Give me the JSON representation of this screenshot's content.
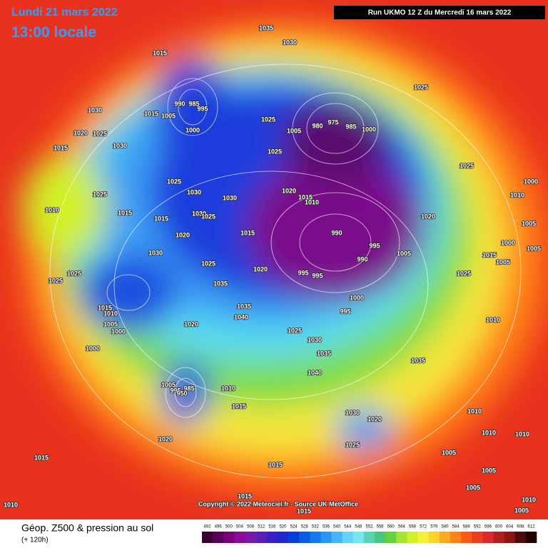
{
  "header": {
    "date": "Lundi 21 mars 2022",
    "time": "13:00 locale",
    "run": "Run UKMO 12 Z du Mercredi 16 mars 2022"
  },
  "map": {
    "isobar_labels": [
      1035,
      1030,
      1015,
      1030,
      1015,
      1005,
      990,
      985,
      995,
      1000,
      1020,
      1025,
      1030,
      1015,
      1025,
      1005,
      980,
      975,
      985,
      1000,
      1025,
      1025,
      1025,
      1030,
      1030,
      1020,
      1015,
      1010,
      1025,
      1010,
      1015,
      1030,
      1025,
      1015,
      1020,
      1015,
      990,
      995,
      990,
      1005,
      1020,
      1025,
      1010,
      1000,
      1005,
      1005,
      1000,
      1015,
      1005,
      1030,
      1025,
      1020,
      995,
      995,
      1025,
      1025,
      1035,
      1000,
      1025,
      995,
      1035,
      1040,
      1015,
      1010,
      1005,
      1000,
      1020,
      1025,
      1030,
      1010,
      1000,
      1035,
      1035,
      1040,
      1005,
      995,
      985,
      950,
      1010,
      1015,
      1030,
      1020,
      1010,
      1010,
      1010,
      1025,
      1020,
      1005,
      1015,
      1015,
      1005,
      1005,
      1010,
      1015,
      1010,
      1015,
      1005
    ],
    "copyright": "Copyright © 2022 Meteociel.fr - Source UK MetOffice"
  },
  "footer": {
    "title": "Géop. Z500 & pression au sol",
    "lead": "(+ 120h)",
    "scale": {
      "values": [
        492,
        496,
        500,
        504,
        508,
        512,
        516,
        520,
        524,
        528,
        532,
        536,
        540,
        544,
        548,
        552,
        556,
        560,
        564,
        568,
        572,
        576,
        580,
        584,
        588,
        592,
        596,
        600,
        604,
        608,
        612
      ],
      "colors": [
        "#3a0030",
        "#5a0058",
        "#780078",
        "#8c0a96",
        "#7818a8",
        "#5a1eb4",
        "#3c1ec8",
        "#1e28d2",
        "#0a3cdc",
        "#0a5ae6",
        "#1478f0",
        "#2896f5",
        "#46b4fa",
        "#64d2fa",
        "#78e6f0",
        "#5ad2b4",
        "#46c878",
        "#64d23c",
        "#a0e632",
        "#d2f028",
        "#f5f03c",
        "#ffd228",
        "#ffaa1e",
        "#ff8214",
        "#ff5a14",
        "#f03c1e",
        "#dc2828",
        "#b41e1e",
        "#8c1414",
        "#500a0a",
        "#1e0000"
      ]
    }
  }
}
